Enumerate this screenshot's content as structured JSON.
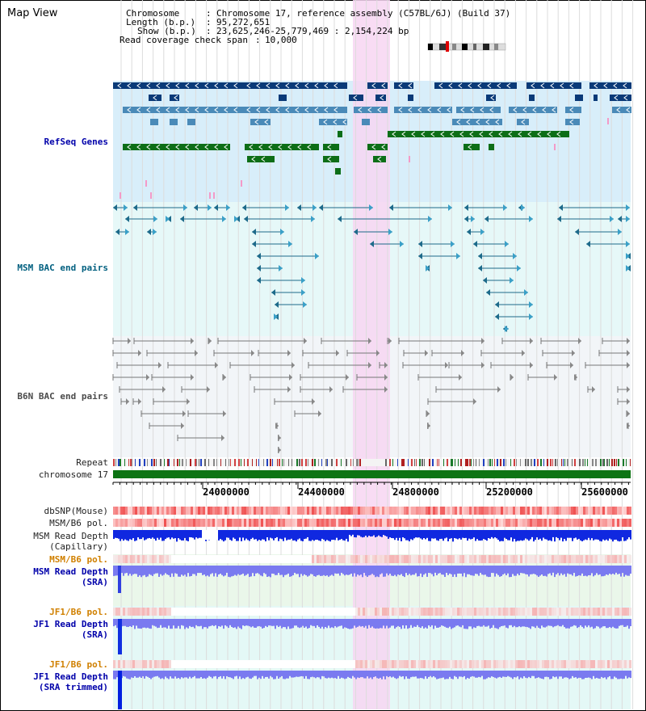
{
  "view_title": "Map View",
  "info": {
    "chromosome_label": "Chromosome",
    "chromosome_value": "Chromosome 17, reference assembly (C57BL/6J) (Build 37)",
    "length_label": "Length (b.p.)",
    "length_value": "95,272,651",
    "show_label": "Show (b.p.)",
    "show_value": "23,625,246-25,779,469 : 2,154,224 bp",
    "coverage_label": "Read coverage check span",
    "coverage_value": "10,000"
  },
  "tracks": {
    "refseq": "RefSeq Genes",
    "msm_bac": "MSM BAC end pairs",
    "b6n_bac": "B6N BAC end pairs",
    "repeat": "Repeat",
    "chromosome": "chromosome 17",
    "dbsnp": "dbSNP(Mouse)",
    "msm_b6_pol_1": "MSM/B6 pol.",
    "msm_depth_cap_1": "MSM Read Depth",
    "msm_depth_cap_2": "(Capillary)",
    "msm_b6_pol_2": "MSM/B6 pol.",
    "msm_depth_sra_1": "MSM Read Depth",
    "msm_depth_sra_2": "(SRA)",
    "jf1_b6_pol_1": "JF1/B6 pol.",
    "jf1_depth_sra_1": "JF1 Read Depth",
    "jf1_depth_sra_2": "(SRA)",
    "jf1_b6_pol_2": "JF1/B6 pol.",
    "jf1_depth_trim_1": "JF1 Read Depth",
    "jf1_depth_trim_2": "(SRA trimmed)"
  },
  "axis_ticks": [
    "24000000",
    "24400000",
    "24800000",
    "25200000",
    "25600000"
  ],
  "colors": {
    "refseq_bg": "#d8eefa",
    "msm_bac_bg": "#e6f8f8",
    "b6n_bac_bg": "#f2f5f8",
    "highlight": "#f7d6f2",
    "gene_dark": "#0a3a78",
    "gene_mid": "#4a8ab8",
    "gene_green": "#0d6e17",
    "bac_teal": "#1d6a8a",
    "bac_gray": "#777777",
    "chromosome_bar": "#0d7414",
    "depth_blue": "#1028e0",
    "depth_light": "#7a7af0",
    "pol_red": "#e04848"
  }
}
